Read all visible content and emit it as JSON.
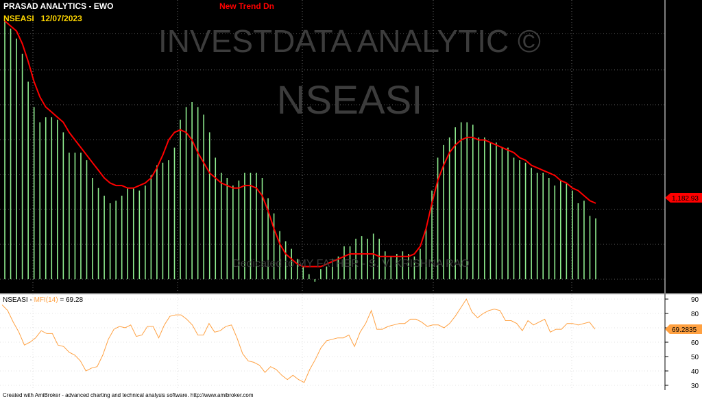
{
  "header": {
    "title": "PRASAD ANALYTICS - EWO",
    "symbol_date": "NSEASI   12/07/2023",
    "trend": "New Trend Dn"
  },
  "watermark": {
    "line1": "INVESTDATA ANALYTIC ©",
    "line2": "NSEASI",
    "dedication": "Dedicated to MY FATHER - S. V. KRISHNA RAO"
  },
  "upper_panel": {
    "last_value_label": "1,182.93"
  },
  "lower_panel": {
    "legend_symbol": "NSEASI - ",
    "legend_indicator": "MFI(14)",
    "legend_value": " = 69.28",
    "last_value_label": "69.2835",
    "y_ticks": [
      "90",
      "80",
      "70",
      "60",
      "50",
      "40",
      "30"
    ]
  },
  "footer": {
    "credit": "Created with AmiBroker - advanced charting and technical analysis software. http://www.amibroker.com"
  },
  "colors": {
    "background": "#000000",
    "bars": "#90ee90",
    "trend_line": "#ff0000",
    "mfi_line": "#ffa040",
    "watermark": "#3c3c3c",
    "title": "#ffffff",
    "symbol": "#ffd700",
    "trend_text": "#ff0000"
  },
  "chart_data": [
    {
      "type": "bar",
      "title": "PRASAD ANALYTICS - EWO",
      "series": [
        {
          "values": [
            1.02,
            0.99,
            0.95,
            0.89,
            0.78,
            0.68,
            0.62,
            0.64,
            0.64,
            0.63,
            0.58,
            0.5,
            0.5,
            0.5,
            0.47,
            0.4,
            0.36,
            0.33,
            0.3,
            0.31,
            0.33,
            0.36,
            0.36,
            0.35,
            0.37,
            0.41,
            0.45,
            0.46,
            0.47,
            0.52,
            0.63,
            0.68,
            0.7,
            0.68,
            0.65,
            0.58,
            0.48,
            0.42,
            0.4,
            0.37,
            0.39,
            0.42,
            0.42,
            0.42,
            0.4,
            0.32,
            0.26,
            0.19,
            0.15,
            0.12,
            0.08,
            0.05,
            0.02,
            -0.01,
            0.04,
            0.05,
            0.08,
            0.09,
            0.13,
            0.13,
            0.16,
            0.17,
            0.16,
            0.18,
            0.16,
            0.11,
            0.09,
            0.1,
            0.11,
            0.1,
            0.09,
            0.12,
            0.2,
            0.35,
            0.48,
            0.53,
            0.56,
            0.6,
            0.62,
            0.62,
            0.61,
            0.56,
            0.56,
            0.54,
            0.54,
            0.52,
            0.52,
            0.48,
            0.47,
            0.46,
            0.44,
            0.42,
            0.42,
            0.4,
            0.37,
            0.39,
            0.38,
            0.35,
            0.3,
            0.31,
            0.25,
            0.24
          ]
        },
        {
          "name": "trend",
          "values": [
            1.02,
            1.0,
            0.98,
            0.93,
            0.86,
            0.78,
            0.72,
            0.68,
            0.66,
            0.64,
            0.62,
            0.58,
            0.55,
            0.52,
            0.49,
            0.46,
            0.43,
            0.4,
            0.38,
            0.37,
            0.37,
            0.36,
            0.36,
            0.37,
            0.38,
            0.4,
            0.44,
            0.49,
            0.55,
            0.58,
            0.59,
            0.58,
            0.55,
            0.5,
            0.46,
            0.42,
            0.4,
            0.38,
            0.37,
            0.36,
            0.36,
            0.37,
            0.37,
            0.36,
            0.33,
            0.27,
            0.2,
            0.14,
            0.1,
            0.08,
            0.06,
            0.05,
            0.05,
            0.05,
            0.05,
            0.06,
            0.07,
            0.08,
            0.09,
            0.1,
            0.1,
            0.1,
            0.1,
            0.1,
            0.09,
            0.09,
            0.09,
            0.09,
            0.09,
            0.09,
            0.1,
            0.13,
            0.2,
            0.3,
            0.39,
            0.45,
            0.5,
            0.53,
            0.55,
            0.56,
            0.56,
            0.55,
            0.55,
            0.54,
            0.53,
            0.52,
            0.51,
            0.5,
            0.48,
            0.47,
            0.45,
            0.44,
            0.43,
            0.42,
            0.41,
            0.39,
            0.38,
            0.36,
            0.35,
            0.33,
            0.31,
            0.3
          ]
        }
      ],
      "last_value_label": "1,182.93"
    },
    {
      "type": "line",
      "title": "NSEASI - MFI(14) = 69.28",
      "ylim": [
        30,
        90
      ],
      "series": [
        {
          "name": "MFI(14)",
          "values": [
            86,
            82,
            74,
            67,
            58,
            60,
            63,
            68,
            66,
            66,
            58,
            57,
            53,
            51,
            47,
            40,
            42,
            43,
            51,
            62,
            69,
            71,
            70,
            72,
            64,
            65,
            71,
            71,
            63,
            72,
            78,
            79,
            79,
            76,
            72,
            65,
            65,
            73,
            67,
            68,
            71,
            72,
            63,
            52,
            47,
            46,
            44,
            39,
            43,
            41,
            37,
            34,
            37,
            34,
            32,
            41,
            48,
            56,
            61,
            62,
            63,
            63,
            65,
            57,
            67,
            73,
            82,
            69,
            69,
            71,
            72,
            73,
            73,
            76,
            76,
            74,
            71,
            72,
            72,
            70,
            73,
            78,
            84,
            90,
            81,
            77,
            80,
            82,
            83,
            82,
            75,
            75,
            73,
            68,
            75,
            72,
            74,
            76,
            67,
            69,
            69,
            73,
            73,
            72,
            73,
            74,
            69
          ]
        }
      ],
      "y_ticks": [
        90,
        80,
        70,
        60,
        50,
        40,
        30
      ],
      "last_value_label": "69.2835"
    }
  ]
}
